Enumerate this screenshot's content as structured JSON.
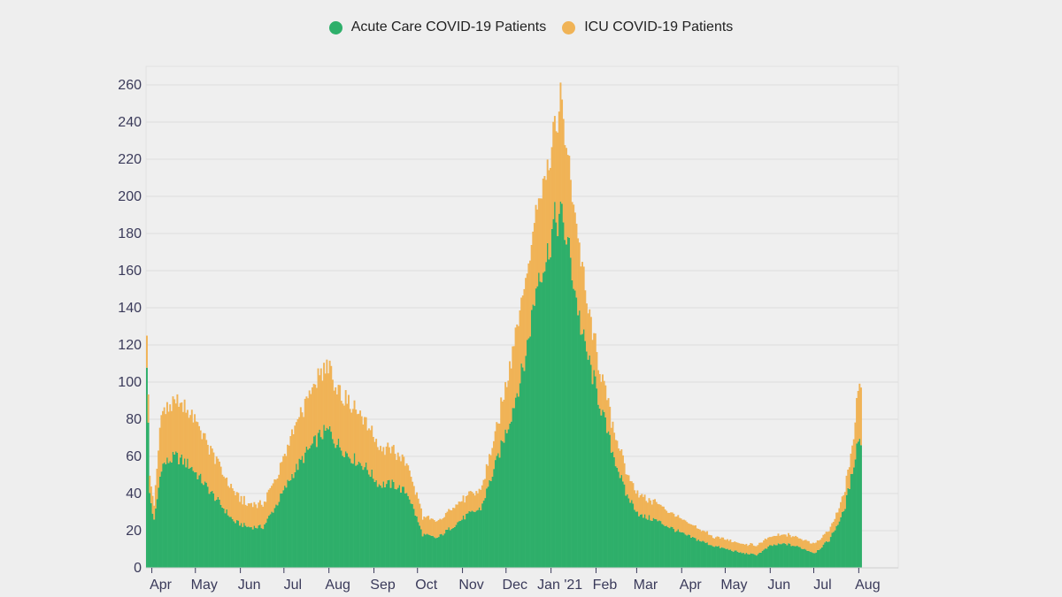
{
  "legend": {
    "acute_label": "Acute Care COVID-19 Patients",
    "icu_label": "ICU COVID-19 Patients"
  },
  "colors": {
    "acute": "#2eaf6a",
    "icu": "#f0b356",
    "grid": "#dddddd",
    "axis": "#3a3a5a"
  },
  "chart_data": {
    "type": "bar",
    "stacked": true,
    "ylim": [
      0,
      270
    ],
    "yticks": [
      0,
      20,
      40,
      60,
      80,
      100,
      120,
      140,
      160,
      180,
      200,
      220,
      240,
      260
    ],
    "x_tick_labels": [
      "Apr",
      "May",
      "Jun",
      "Jul",
      "Aug",
      "Sep",
      "Oct",
      "Nov",
      "Dec",
      "Jan '21",
      "Feb",
      "Mar",
      "Apr",
      "May",
      "Jun",
      "Jul",
      "Aug"
    ],
    "x_tick_days": [
      4,
      34,
      65,
      95,
      126,
      157,
      187,
      218,
      248,
      279,
      310,
      338,
      369,
      399,
      430,
      460,
      491
    ],
    "x_range_days": [
      0,
      492
    ],
    "grid": true,
    "legend_position": "top",
    "series": [
      {
        "name": "Acute Care COVID-19 Patients",
        "key_days": [
          0,
          2,
          5,
          10,
          20,
          30,
          40,
          50,
          60,
          70,
          80,
          90,
          100,
          110,
          120,
          126,
          130,
          140,
          150,
          160,
          170,
          180,
          190,
          200,
          210,
          220,
          230,
          240,
          250,
          260,
          265,
          270,
          275,
          280,
          285,
          290,
          295,
          300,
          305,
          310,
          320,
          330,
          340,
          350,
          360,
          370,
          380,
          390,
          400,
          410,
          420,
          430,
          440,
          450,
          460,
          470,
          480,
          485,
          490,
          492
        ],
        "key_values": [
          112,
          40,
          25,
          55,
          60,
          55,
          45,
          35,
          25,
          22,
          22,
          35,
          50,
          62,
          72,
          74,
          68,
          60,
          55,
          45,
          45,
          40,
          18,
          16,
          22,
          28,
          32,
          55,
          80,
          110,
          135,
          160,
          165,
          185,
          190,
          175,
          150,
          125,
          110,
          95,
          65,
          40,
          28,
          26,
          22,
          18,
          15,
          12,
          10,
          8,
          7,
          12,
          13,
          11,
          8,
          15,
          30,
          48,
          70,
          68
        ]
      },
      {
        "name": "ICU COVID-19 Patients",
        "key_days": [
          0,
          2,
          5,
          10,
          20,
          30,
          40,
          50,
          60,
          70,
          80,
          90,
          100,
          110,
          120,
          126,
          130,
          140,
          150,
          160,
          170,
          180,
          190,
          200,
          210,
          220,
          230,
          240,
          250,
          260,
          265,
          270,
          275,
          280,
          285,
          290,
          295,
          300,
          305,
          310,
          320,
          330,
          340,
          350,
          360,
          370,
          380,
          390,
          400,
          410,
          420,
          430,
          440,
          450,
          460,
          470,
          480,
          485,
          490,
          492
        ],
        "key_values": [
          18,
          10,
          8,
          28,
          28,
          30,
          25,
          20,
          15,
          12,
          12,
          15,
          22,
          28,
          33,
          34,
          30,
          30,
          25,
          20,
          18,
          15,
          10,
          8,
          10,
          10,
          10,
          15,
          30,
          40,
          38,
          45,
          50,
          50,
          60,
          50,
          40,
          35,
          25,
          20,
          15,
          12,
          10,
          10,
          8,
          7,
          6,
          5,
          5,
          5,
          5,
          5,
          5,
          5,
          5,
          5,
          8,
          12,
          25,
          30
        ]
      }
    ]
  }
}
